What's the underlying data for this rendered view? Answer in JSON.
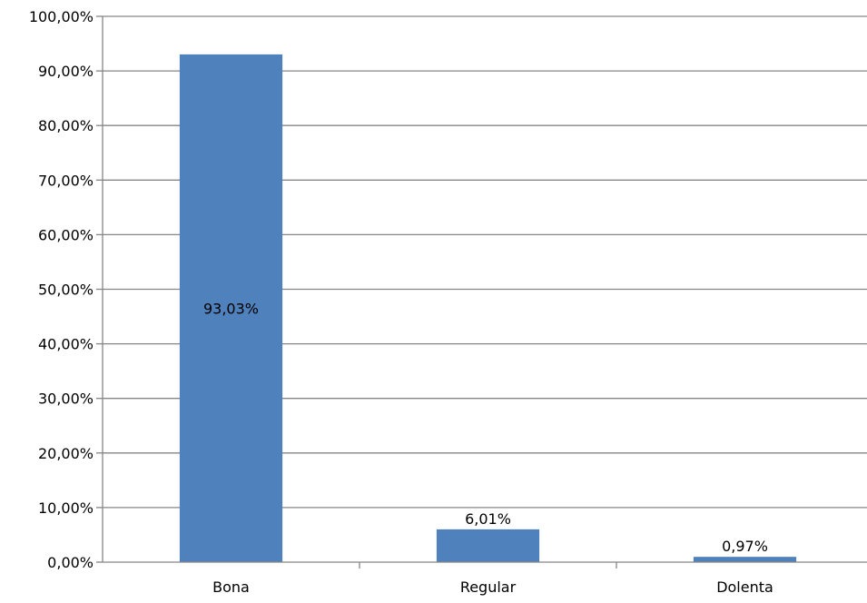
{
  "chart_data": {
    "type": "bar",
    "categories": [
      "Bona",
      "Regular",
      "Dolenta"
    ],
    "values": [
      93.03,
      6.01,
      0.97
    ],
    "data_labels": [
      "93,03%",
      "6,01%",
      "0,97%"
    ],
    "title": "",
    "xlabel": "",
    "ylabel": "",
    "ylim": [
      0,
      100
    ],
    "yticks": [
      0,
      10,
      20,
      30,
      40,
      50,
      60,
      70,
      80,
      90,
      100
    ],
    "ytick_labels": [
      "0,00%",
      "10,00%",
      "20,00%",
      "30,00%",
      "40,00%",
      "50,00%",
      "60,00%",
      "70,00%",
      "80,00%",
      "90,00%",
      "100,00%"
    ],
    "grid": true,
    "legend": "none",
    "bar_color": "#4F81BD",
    "grid_color": "#868686"
  }
}
